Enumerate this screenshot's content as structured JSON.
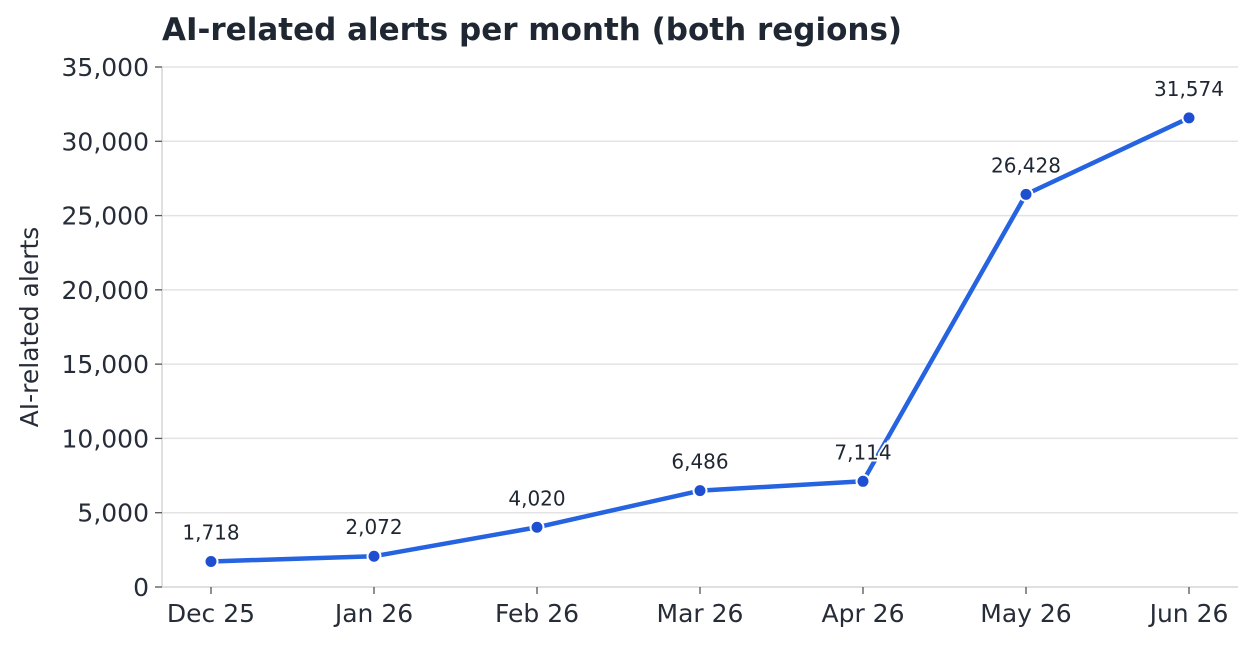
{
  "chart_data": {
    "type": "line",
    "title": "AI-related alerts per month (both regions)",
    "xlabel": "",
    "ylabel": "AI-related alerts",
    "categories": [
      "Dec 25",
      "Jan 26",
      "Feb 26",
      "Mar 26",
      "Apr 26",
      "May 26",
      "Jun 26"
    ],
    "values": [
      1718,
      2072,
      4020,
      6486,
      7114,
      26428,
      31574
    ],
    "value_labels": [
      "1,718",
      "2,072",
      "4,020",
      "6,486",
      "7,114",
      "26,428",
      "31,574"
    ],
    "ylim": [
      0,
      35000
    ],
    "yticks": [
      0,
      5000,
      10000,
      15000,
      20000,
      25000,
      30000,
      35000
    ],
    "ytick_labels": [
      "0",
      "5,000",
      "10,000",
      "15,000",
      "20,000",
      "25,000",
      "30,000",
      "35,000"
    ],
    "grid": true,
    "legend": "none",
    "line_color": "#2563e0",
    "marker_color": "#1f4fd1"
  }
}
